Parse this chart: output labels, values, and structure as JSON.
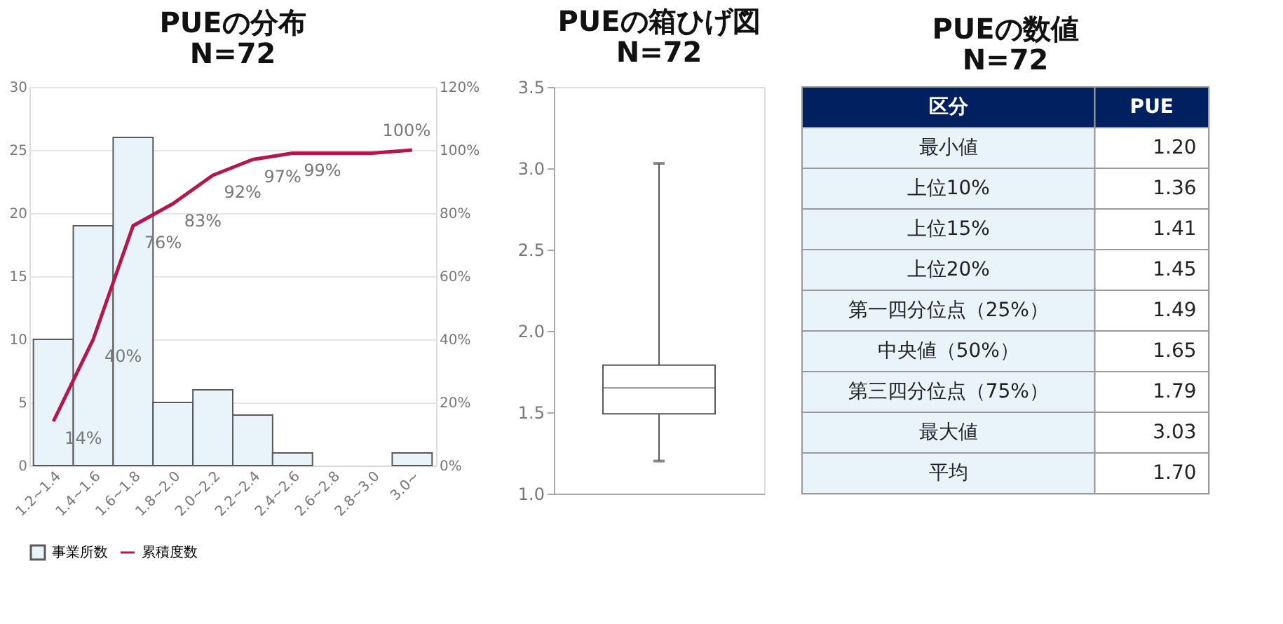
{
  "chart_data": [
    {
      "type": "bar",
      "title": "PUEの分布",
      "subtitle": "N=72",
      "categories": [
        "1.2~1.4",
        "1.4~1.6",
        "1.6~1.8",
        "1.8~2.0",
        "2.0~2.2",
        "2.2~2.4",
        "2.4~2.6",
        "2.6~2.8",
        "2.8~3.0",
        "3.0~"
      ],
      "series": [
        {
          "name": "事業所数",
          "type": "bar",
          "color": "#e8f4fa",
          "values": [
            10,
            19,
            26,
            5,
            6,
            4,
            1,
            0,
            0,
            1
          ]
        },
        {
          "name": "累積度数",
          "type": "line",
          "axis": "y2",
          "color": "#b5174b",
          "values": [
            14,
            40,
            76,
            83,
            92,
            97,
            99,
            99,
            99,
            100
          ],
          "value_labels": [
            "14%",
            "40%",
            "76%",
            "83%",
            "92%",
            "97%",
            "99%",
            null,
            null,
            "100%"
          ]
        }
      ],
      "ylim": [
        0,
        30
      ],
      "yticks": [
        0,
        5,
        10,
        15,
        20,
        25,
        30
      ],
      "y2lim": [
        0,
        120
      ],
      "y2ticks": [
        {
          "value": 0,
          "label": "0%"
        },
        {
          "value": 20,
          "label": "20%"
        },
        {
          "value": 40,
          "label": "40%"
        },
        {
          "value": 60,
          "label": "60%"
        },
        {
          "value": 80,
          "label": "80%"
        },
        {
          "value": 100,
          "label": "100%"
        },
        {
          "value": 120,
          "label": "120%"
        }
      ],
      "grid": "y",
      "legend": "bottom"
    },
    {
      "type": "box",
      "title": "PUEの箱ひげ図",
      "subtitle": "N=72",
      "categories": [
        null
      ],
      "boxes": [
        {
          "low": 1.2,
          "q1": 1.49,
          "median": 1.65,
          "q3": 1.79,
          "high": 3.03
        }
      ],
      "ylim": [
        1.0,
        3.5
      ],
      "yticks": [
        {
          "value": 1.0,
          "label": "1.0"
        },
        {
          "value": 1.5,
          "label": "1.5"
        },
        {
          "value": 2.0,
          "label": "2.0"
        },
        {
          "value": 2.5,
          "label": "2.5"
        },
        {
          "value": 3.0,
          "label": "3.0"
        },
        {
          "value": 3.5,
          "label": "3.5"
        }
      ],
      "tick_labels": "y"
    },
    {
      "type": "other",
      "title": "PUEの数値",
      "subtitle": "N=72",
      "xlabel": "区分",
      "ylabel": "PUE",
      "categories": [
        "最小値",
        "上位10%",
        "上位15%",
        "上位20%",
        "第一四分位点（25%）",
        "中央値（50%）",
        "第三四分位点（75%）",
        "最大値",
        "平均"
      ],
      "value_labels": [
        "1.20",
        "1.36",
        "1.41",
        "1.45",
        "1.49",
        "1.65",
        "1.79",
        "3.03",
        "1.70"
      ]
    }
  ]
}
